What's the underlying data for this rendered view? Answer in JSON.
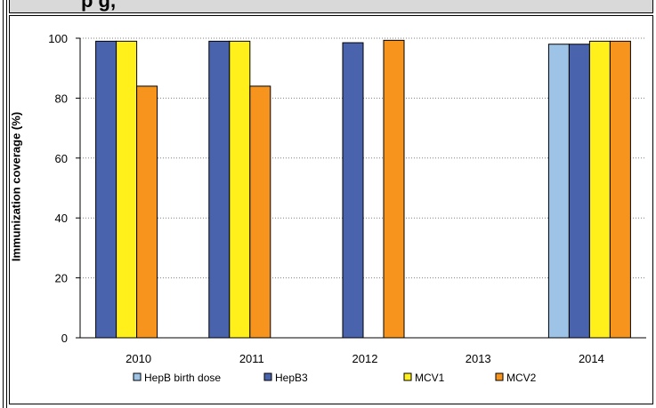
{
  "title_fragment": "p                                                                         g,",
  "chart_data": {
    "type": "bar",
    "categories": [
      "2010",
      "2011",
      "2012",
      "2013",
      "2014"
    ],
    "series": [
      {
        "name": "HepB birth dose",
        "color": "#9dc3e6",
        "values": [
          null,
          null,
          null,
          null,
          98
        ]
      },
      {
        "name": "HepB3",
        "color": "#4a63ad",
        "values": [
          99,
          99,
          98.5,
          null,
          98
        ]
      },
      {
        "name": "MCV1",
        "color": "#ffef1a",
        "values": [
          99,
          99,
          null,
          null,
          99
        ]
      },
      {
        "name": "MCV2",
        "color": "#f7941d",
        "values": [
          84,
          84,
          99.3,
          null,
          99
        ]
      }
    ],
    "ylabel": "Immunization coverage (%)",
    "xlabel": "",
    "ylim": [
      0,
      100
    ],
    "yticks": [
      "0",
      "20",
      "40",
      "60",
      "80",
      "100"
    ],
    "grid": true,
    "legend_position": "bottom"
  }
}
